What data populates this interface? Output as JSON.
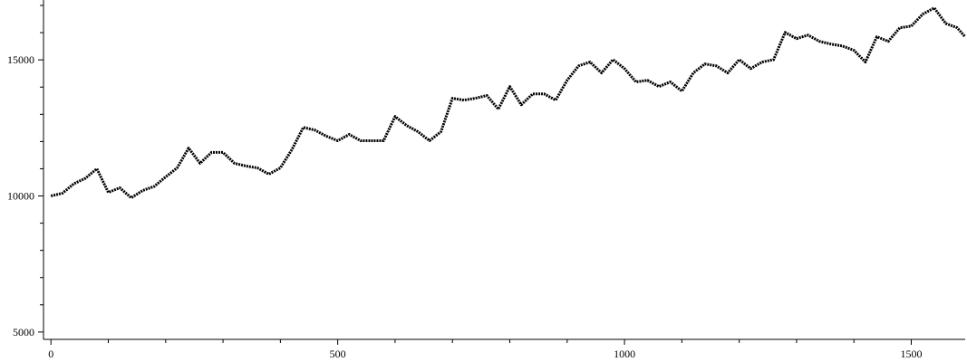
{
  "chart_data": {
    "type": "line",
    "color": "#000000",
    "x": [
      0,
      20,
      40,
      60,
      80,
      100,
      120,
      140,
      160,
      180,
      200,
      220,
      240,
      260,
      280,
      300,
      320,
      340,
      360,
      380,
      400,
      420,
      440,
      460,
      480,
      500,
      520,
      540,
      560,
      580,
      600,
      620,
      640,
      660,
      680,
      700,
      720,
      740,
      760,
      780,
      800,
      820,
      840,
      860,
      880,
      900,
      920,
      940,
      960,
      980,
      1000,
      1020,
      1040,
      1060,
      1080,
      1100,
      1120,
      1140,
      1160,
      1180,
      1200,
      1220,
      1240,
      1260,
      1280,
      1300,
      1320,
      1340,
      1360,
      1380,
      1400,
      1420,
      1440,
      1460,
      1480,
      1500,
      1520,
      1540,
      1560,
      1580,
      1594
    ],
    "values": [
      10000,
      10100,
      10450,
      10650,
      11000,
      10130,
      10300,
      9930,
      10200,
      10350,
      10700,
      11030,
      11760,
      11200,
      11600,
      11600,
      11200,
      11100,
      11030,
      10800,
      11030,
      11700,
      12520,
      12420,
      12200,
      12030,
      12260,
      12030,
      12030,
      12030,
      12920,
      12590,
      12360,
      12030,
      12360,
      13590,
      13520,
      13590,
      13690,
      13190,
      14020,
      13350,
      13750,
      13750,
      13520,
      14250,
      14780,
      14920,
      14520,
      15010,
      14680,
      14190,
      14250,
      14020,
      14190,
      13850,
      14520,
      14850,
      14780,
      14520,
      15010,
      14680,
      14920,
      15010,
      16010,
      15780,
      15910,
      15680,
      15580,
      15510,
      15350,
      14920,
      15850,
      15680,
      16180,
      16240,
      16680,
      16910,
      16340,
      16180,
      15850
    ],
    "xlim": [
      -13,
      1594
    ],
    "ylim": [
      4730,
      17200
    ],
    "xticks": [
      0,
      500,
      1000,
      1500
    ],
    "yticks": [
      5000,
      10000,
      15000
    ],
    "xminorticks": [
      100,
      200,
      300,
      400,
      600,
      700,
      800,
      900,
      1100,
      1200,
      1300,
      1400
    ],
    "yminorticks": [
      6000,
      7000,
      8000,
      9000,
      11000,
      12000,
      13000,
      14000,
      16000,
      17000
    ]
  }
}
